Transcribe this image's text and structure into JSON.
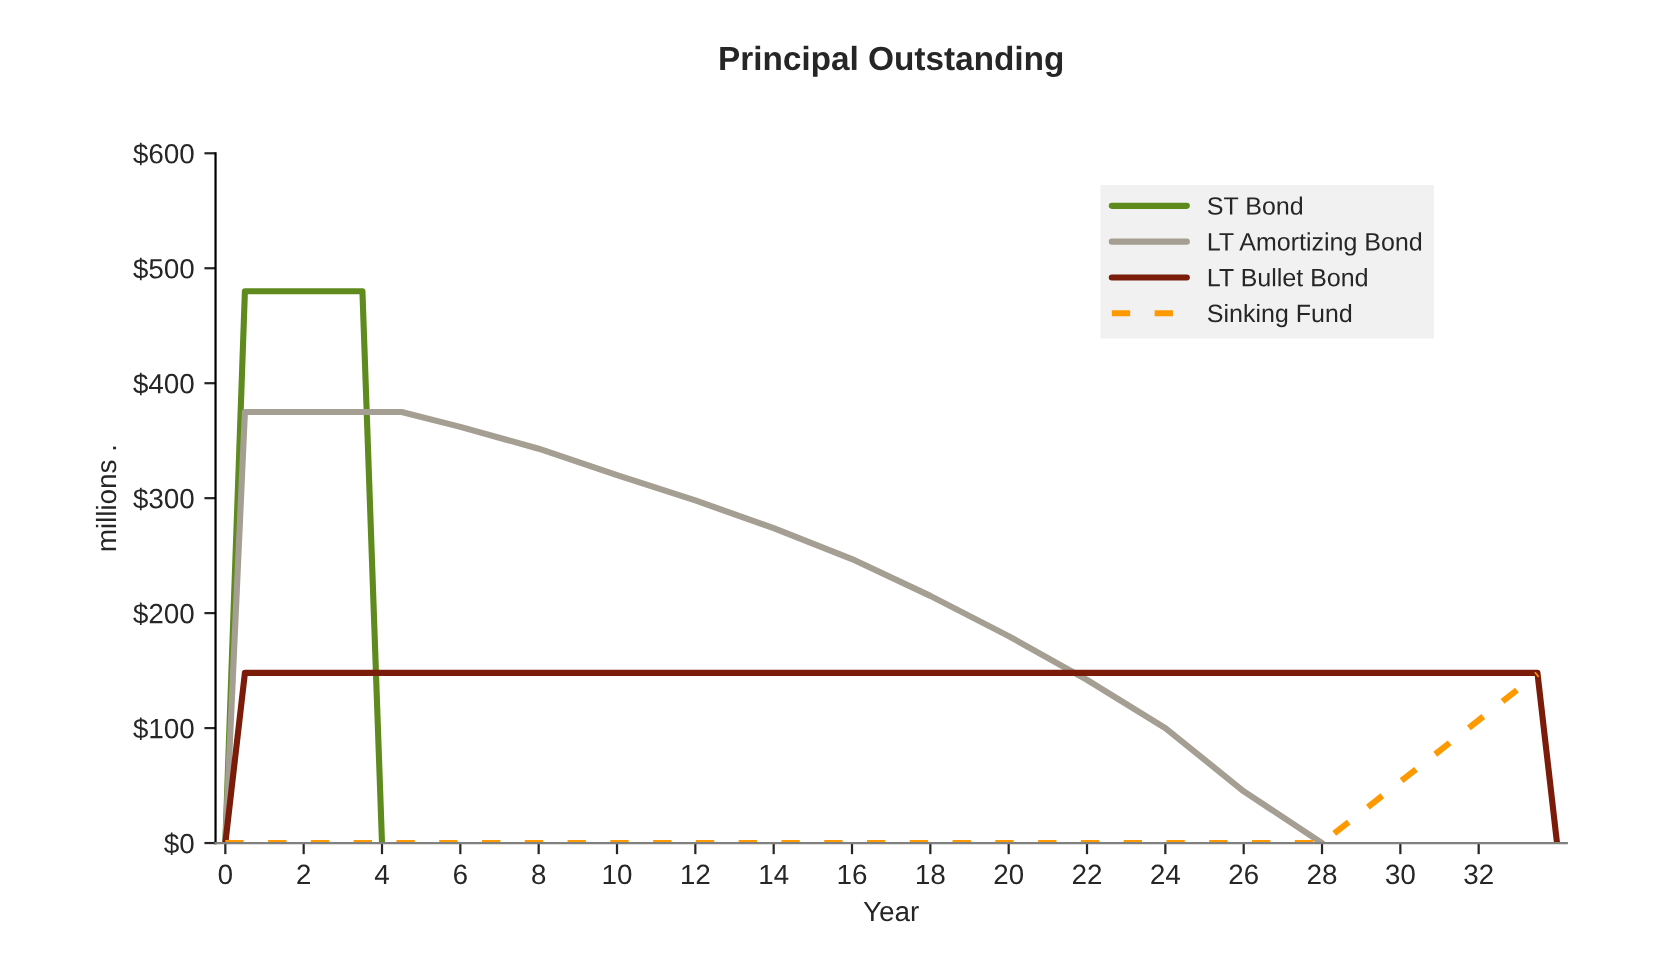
{
  "chart_data": {
    "type": "line",
    "title": "Principal Outstanding",
    "xlabel": "Year",
    "ylabel": "millions .",
    "series": [
      {
        "name": "ST Bond",
        "color": "#5f8a1e",
        "x": [
          0,
          0.5,
          3.5,
          4
        ],
        "values": [
          0,
          480,
          480,
          0
        ]
      },
      {
        "name": "LT Amortizing Bond",
        "color": "#a59e92",
        "x": [
          0,
          0.5,
          4.5,
          6,
          8,
          10,
          12,
          14,
          16,
          18,
          20,
          22,
          24,
          26,
          28
        ],
        "values": [
          0,
          375,
          375,
          362,
          343,
          320,
          298,
          274,
          247,
          215,
          180,
          142,
          100,
          45,
          0
        ]
      },
      {
        "name": "LT Bullet Bond",
        "color": "#7b1c0b",
        "x": [
          0,
          0.5,
          33.5,
          34
        ],
        "values": [
          0,
          148,
          148,
          0
        ]
      },
      {
        "name": "Sinking Fund",
        "color": "#ff9900",
        "line_style": "dashed",
        "x": [
          0,
          28,
          33.5
        ],
        "values": [
          0,
          0,
          147
        ]
      }
    ],
    "xlim": [
      -0.25,
      34.25
    ],
    "xticks": [
      0,
      2,
      4,
      6,
      8,
      10,
      12,
      14,
      16,
      18,
      20,
      22,
      24,
      26,
      28,
      30,
      32
    ],
    "ylim": [
      0,
      600
    ],
    "yticks": [
      {
        "value": 0,
        "label": "$0"
      },
      {
        "value": 100,
        "label": "$100"
      },
      {
        "value": 200,
        "label": "$200"
      },
      {
        "value": 300,
        "label": "$300"
      },
      {
        "value": 400,
        "label": "$400"
      },
      {
        "value": 500,
        "label": "$500"
      },
      {
        "value": 600,
        "label": "$600"
      }
    ],
    "legend": "top right",
    "grid": false
  }
}
